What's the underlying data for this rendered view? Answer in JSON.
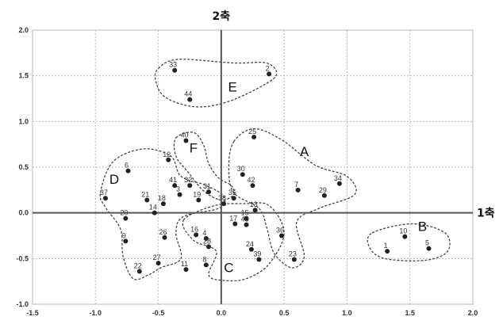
{
  "chart_data": {
    "type": "scatter",
    "xlim": [
      -1.5,
      2.0
    ],
    "ylim": [
      -1.0,
      2.0
    ],
    "x_ticks": [
      "-1.5",
      "-1.0",
      "-0.5",
      "0.0",
      "0.5",
      "1.0",
      "1.5",
      "2.0"
    ],
    "y_ticks": [
      "2.0",
      "1.5",
      "1.0",
      "0.5",
      "0.0",
      "-0.5",
      "-1.0"
    ],
    "xlabel": "1축",
    "ylabel": "2축",
    "grid": true,
    "colors": {
      "point": "#222222",
      "axis": "#555555",
      "grid": "#bbbbbb",
      "cluster": "#444444"
    },
    "points": [
      {
        "label": "1",
        "x": 1.32,
        "y": -0.42
      },
      {
        "label": "2",
        "x": 0.38,
        "y": 1.52
      },
      {
        "label": "3",
        "x": -0.33,
        "y": 0.2
      },
      {
        "label": "4",
        "x": -0.12,
        "y": -0.28
      },
      {
        "label": "5",
        "x": 1.65,
        "y": -0.39
      },
      {
        "label": "6",
        "x": -0.74,
        "y": 0.46
      },
      {
        "label": "7",
        "x": 0.61,
        "y": 0.25
      },
      {
        "label": "8",
        "x": -0.12,
        "y": -0.57
      },
      {
        "label": "9",
        "x": -0.76,
        "y": -0.31
      },
      {
        "label": "10",
        "x": 1.46,
        "y": -0.26
      },
      {
        "label": "11",
        "x": -0.28,
        "y": -0.62
      },
      {
        "label": "12",
        "x": -0.42,
        "y": 0.58
      },
      {
        "label": "13",
        "x": 0.27,
        "y": 0.03
      },
      {
        "label": "14",
        "x": -0.53,
        "y": 0.0
      },
      {
        "label": "15",
        "x": 0.2,
        "y": -0.06
      },
      {
        "label": "16",
        "x": -0.2,
        "y": -0.24
      },
      {
        "label": "17",
        "x": 0.11,
        "y": -0.12
      },
      {
        "label": "18",
        "x": -0.46,
        "y": 0.1
      },
      {
        "label": "19",
        "x": -0.18,
        "y": 0.14
      },
      {
        "label": "20",
        "x": -0.76,
        "y": -0.06
      },
      {
        "label": "21",
        "x": -0.59,
        "y": 0.14
      },
      {
        "label": "22",
        "x": -0.65,
        "y": -0.64
      },
      {
        "label": "23",
        "x": 0.58,
        "y": -0.51
      },
      {
        "label": "24",
        "x": 0.24,
        "y": -0.4
      },
      {
        "label": "25",
        "x": 0.26,
        "y": 0.83
      },
      {
        "label": "26",
        "x": -0.45,
        "y": -0.27
      },
      {
        "label": "27",
        "x": -0.5,
        "y": -0.55
      },
      {
        "label": "28",
        "x": -0.1,
        "y": -0.37
      },
      {
        "label": "29",
        "x": 0.82,
        "y": 0.19
      },
      {
        "label": "30",
        "x": 0.17,
        "y": 0.42
      },
      {
        "label": "31",
        "x": -0.1,
        "y": 0.23
      },
      {
        "label": "32",
        "x": -0.25,
        "y": 0.3
      },
      {
        "label": "33",
        "x": -0.37,
        "y": 1.56
      },
      {
        "label": "34",
        "x": 0.94,
        "y": 0.32
      },
      {
        "label": "35",
        "x": 0.1,
        "y": 0.16
      },
      {
        "label": "36",
        "x": 0.48,
        "y": -0.25
      },
      {
        "label": "37",
        "x": -0.92,
        "y": 0.16
      },
      {
        "label": "38",
        "x": 0.02,
        "y": 0.1
      },
      {
        "label": "39",
        "x": 0.3,
        "y": -0.51
      },
      {
        "label": "40",
        "x": -0.28,
        "y": 0.79
      },
      {
        "label": "41",
        "x": -0.37,
        "y": 0.3
      },
      {
        "label": "42",
        "x": 0.25,
        "y": 0.3
      },
      {
        "label": "43",
        "x": 0.2,
        "y": -0.13
      },
      {
        "label": "44",
        "x": -0.25,
        "y": 1.24
      }
    ],
    "clusters": [
      {
        "name": "A",
        "label_x": 0.66,
        "label_y": 0.62
      },
      {
        "name": "B",
        "label_x": 1.6,
        "label_y": -0.2
      },
      {
        "name": "C",
        "label_x": 0.06,
        "label_y": -0.65
      },
      {
        "name": "D",
        "label_x": -0.85,
        "label_y": 0.32
      },
      {
        "name": "E",
        "label_x": 0.09,
        "label_y": 1.33
      },
      {
        "name": "F",
        "label_x": -0.22,
        "label_y": 0.66
      }
    ]
  }
}
